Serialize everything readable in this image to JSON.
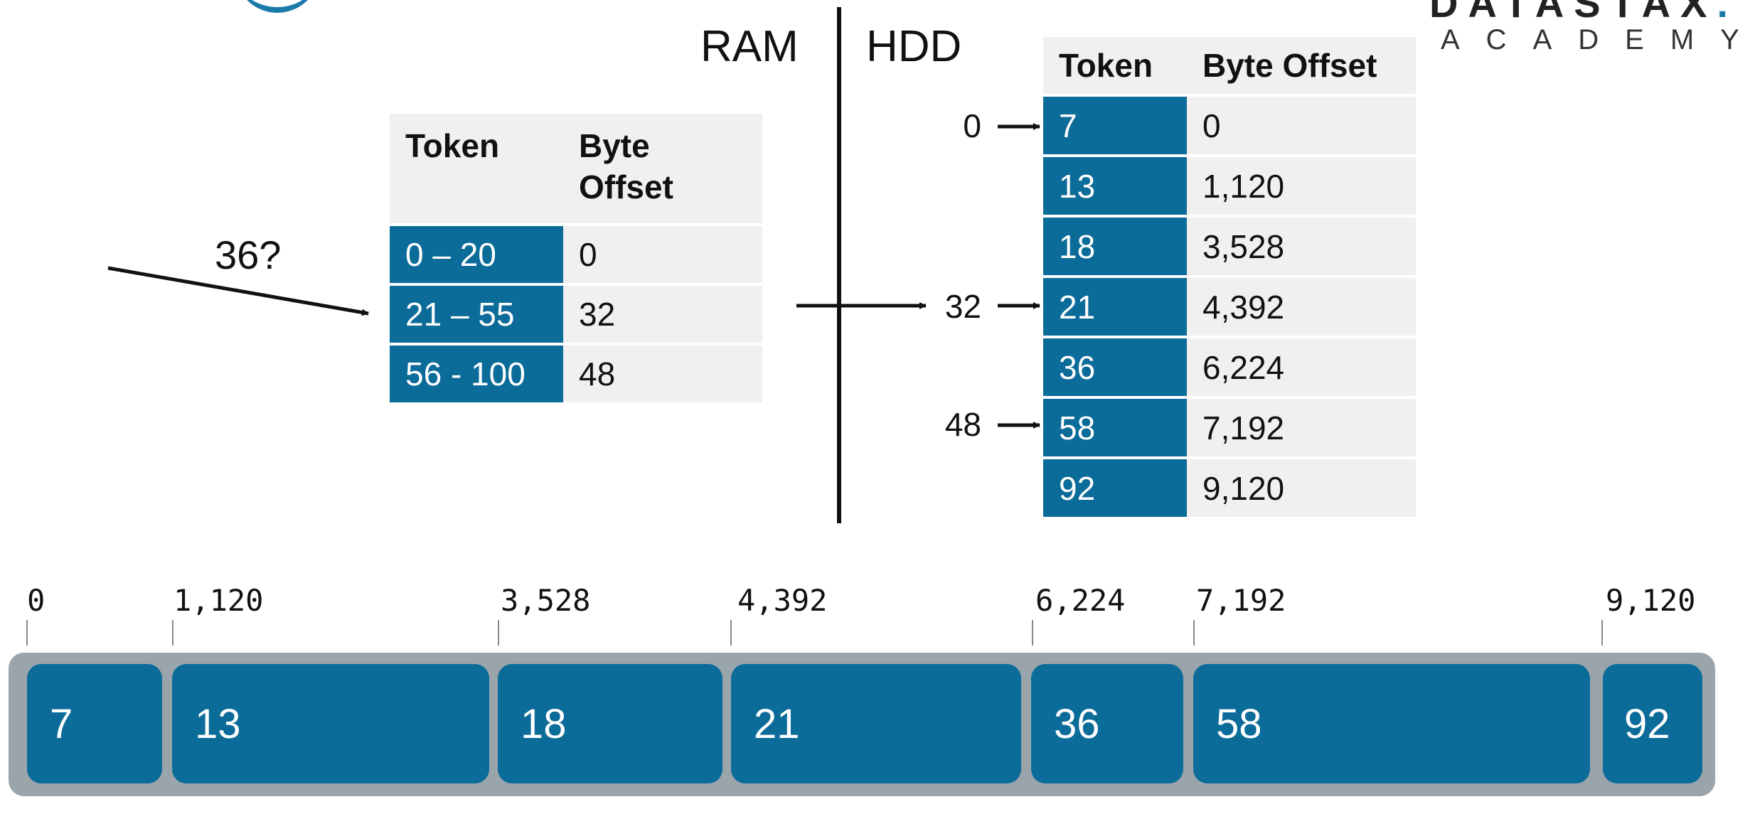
{
  "logo": {
    "top": "DATASTAX",
    "dot": ".",
    "sub": "ACADEMY"
  },
  "labels": {
    "ram": "RAM",
    "hdd": "HDD",
    "query": "36?"
  },
  "ram_table": {
    "headers": [
      "Token",
      "Byte\nOffset"
    ],
    "rows": [
      {
        "token": "0 – 20",
        "offset": "0"
      },
      {
        "token": "21 – 55",
        "offset": "32"
      },
      {
        "token": "56 - 100",
        "offset": "48"
      }
    ]
  },
  "hdd_table": {
    "headers": [
      "Token",
      "Byte Offset"
    ],
    "rows": [
      {
        "token": "7",
        "offset": "0"
      },
      {
        "token": "13",
        "offset": "1,120"
      },
      {
        "token": "18",
        "offset": "3,528"
      },
      {
        "token": "21",
        "offset": "4,392"
      },
      {
        "token": "36",
        "offset": "6,224"
      },
      {
        "token": "58",
        "offset": "7,192"
      },
      {
        "token": "92",
        "offset": "9,120"
      }
    ]
  },
  "pointers": [
    "0",
    "32",
    "48"
  ],
  "file_bar": {
    "offsets": [
      "0",
      "1,120",
      "3,528",
      "4,392",
      "6,224",
      "7,192",
      "9,120"
    ],
    "blocks": [
      "7",
      "13",
      "18",
      "21",
      "36",
      "58",
      "92"
    ]
  },
  "colors": {
    "token_fill": "#0b6b99",
    "cell_fill": "#f0f0f0",
    "bar_bg": "#9aa5ab"
  }
}
